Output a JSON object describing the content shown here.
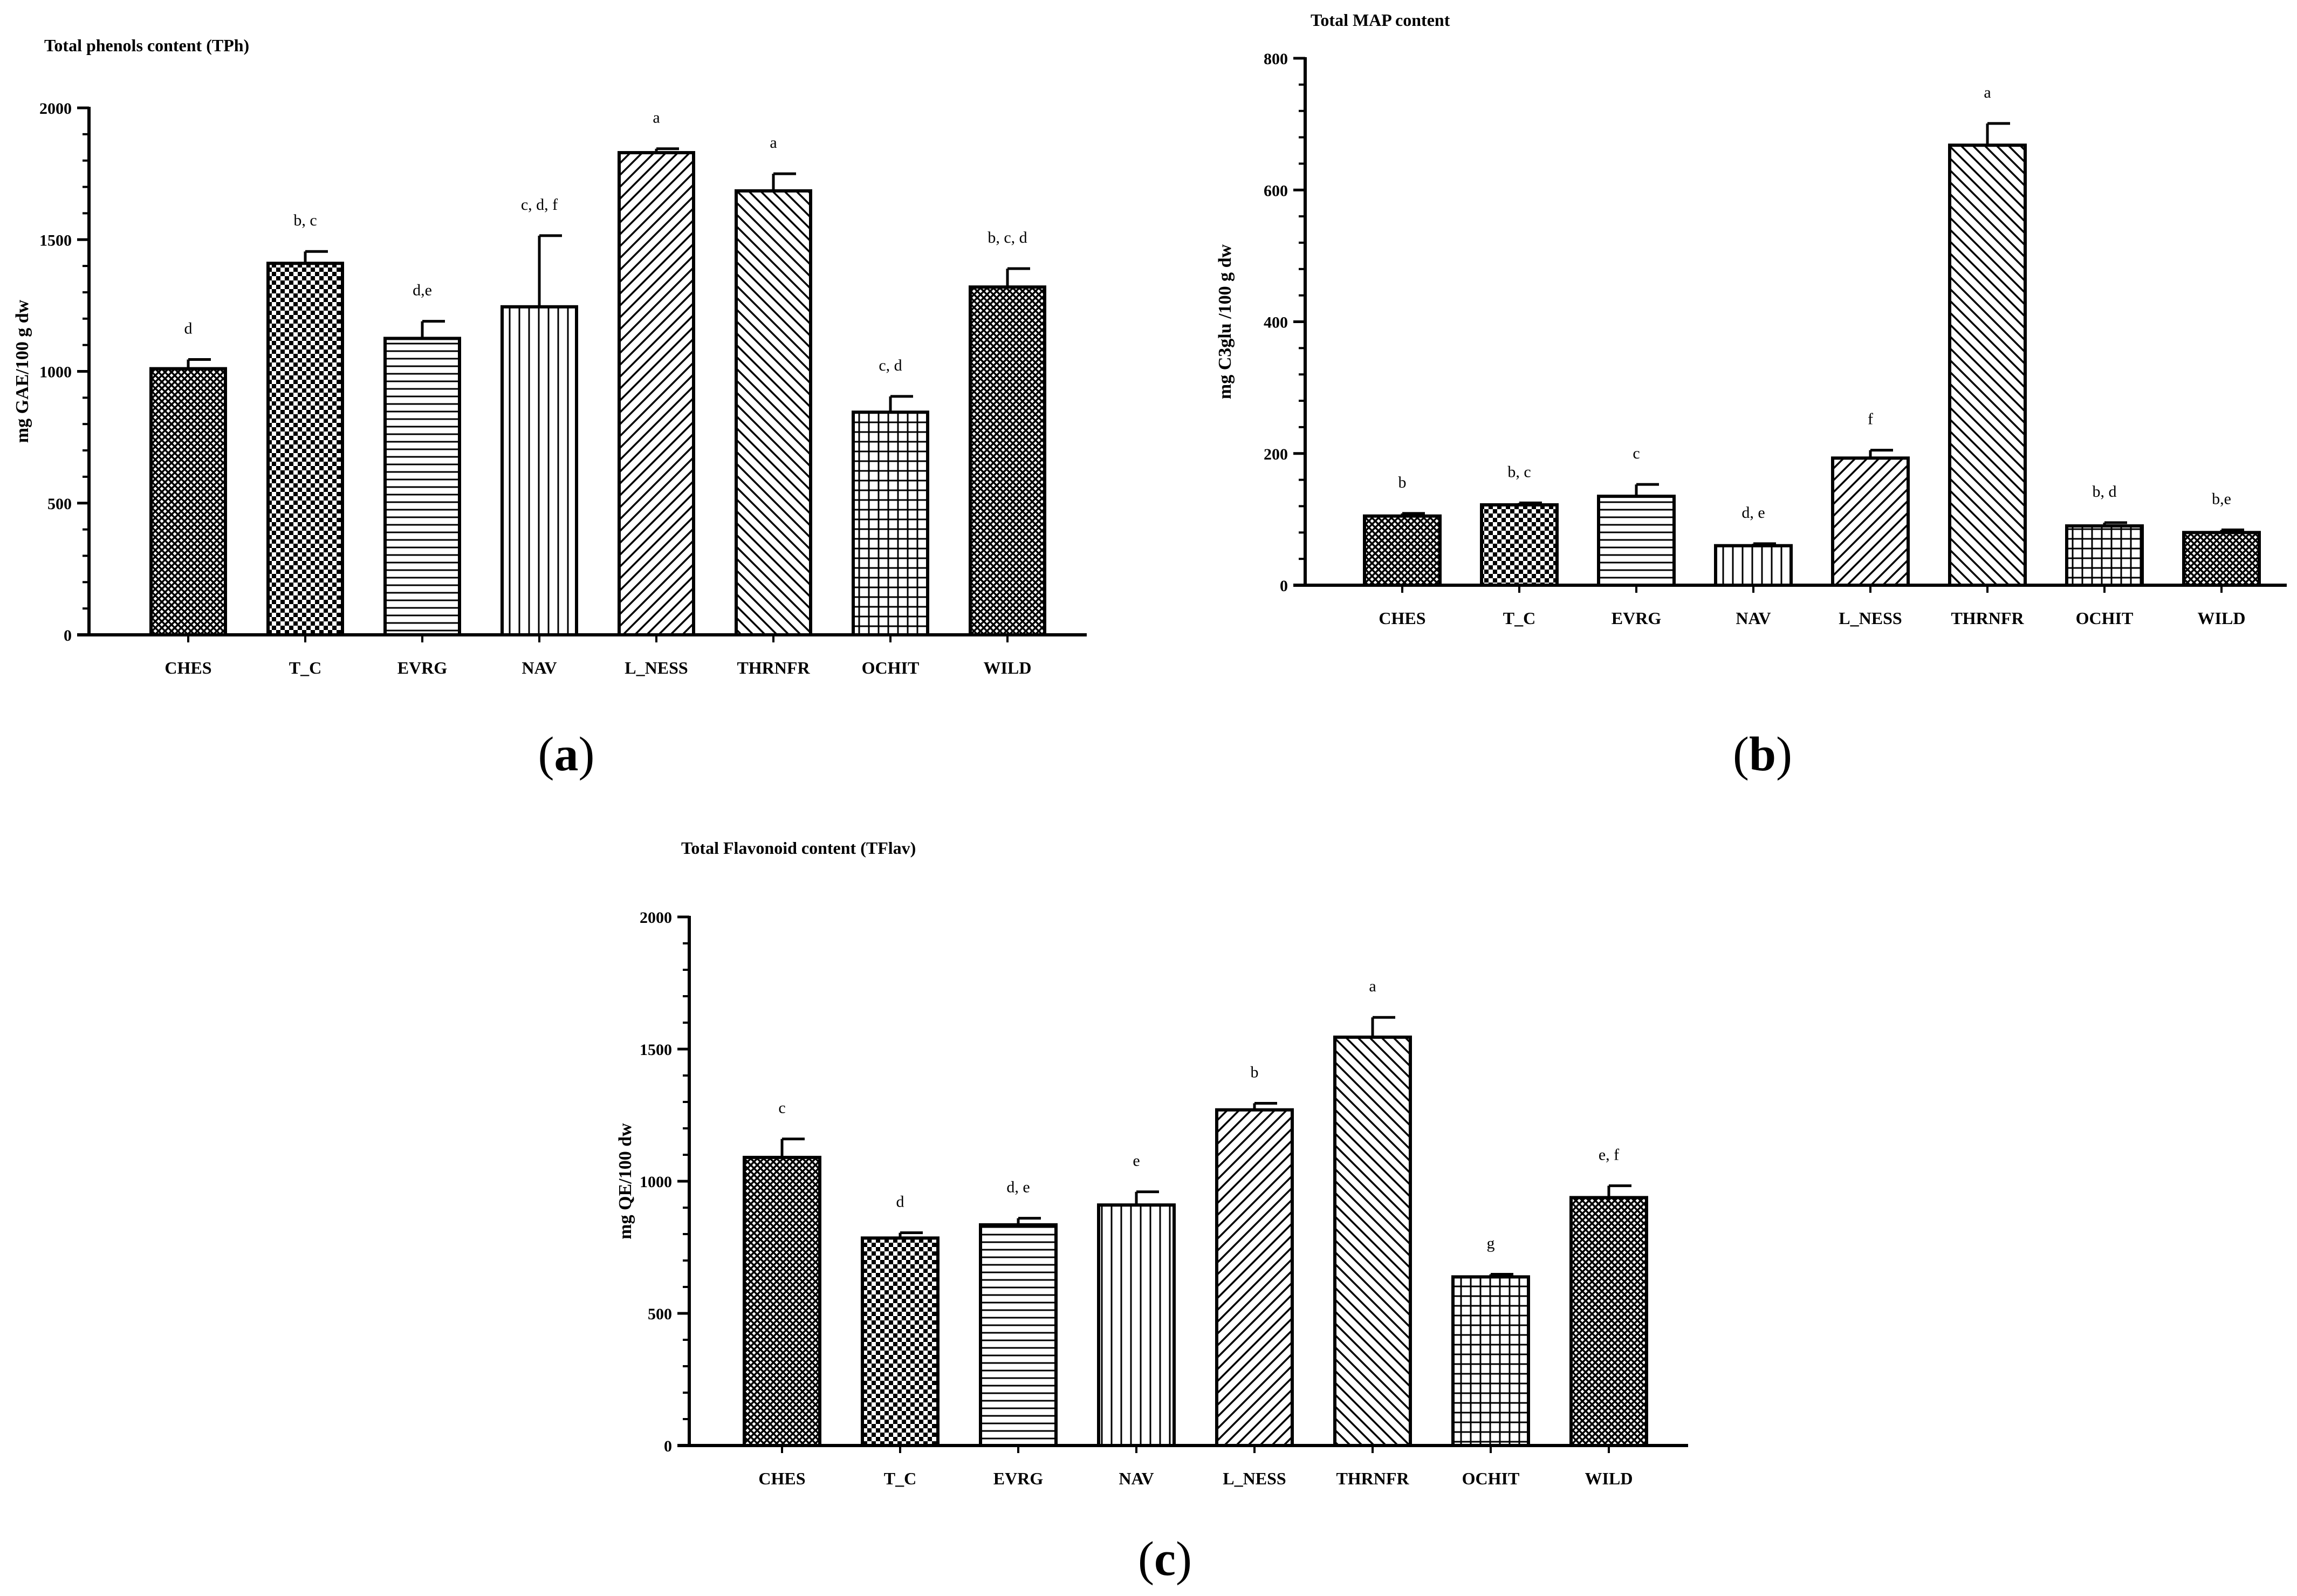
{
  "chart_data": [
    {
      "type": "bar",
      "panel_label": "(a)",
      "title": "Total phenols content (TPh)",
      "xlabel": "",
      "ylabel": "mg GAE/100 g dw",
      "ylim": [
        0,
        2000
      ],
      "yticks": [
        0,
        500,
        1000,
        1500,
        2000
      ],
      "categories": [
        "CHES",
        "T_C",
        "EVRG",
        "NAV",
        "L_NESS",
        "THRNFR",
        "OCHIT",
        "WILD"
      ],
      "values": [
        1010,
        1410,
        1125,
        1245,
        1830,
        1685,
        845,
        1320
      ],
      "errors": [
        35,
        45,
        65,
        270,
        15,
        65,
        60,
        70
      ],
      "significance": [
        "d",
        "b, c",
        "d,e",
        "c, d, f",
        "a",
        "a",
        "c, d",
        "b, c, d"
      ],
      "patterns": [
        "fine-crosshatch",
        "checker",
        "horizontal",
        "vertical",
        "diagonal-up",
        "diagonal-down",
        "grid",
        "fine-crosshatch"
      ]
    },
    {
      "type": "bar",
      "panel_label": "(b)",
      "title": "Total MAP content",
      "xlabel": "",
      "ylabel": "mg C3glu /100 g dw",
      "ylim": [
        0,
        800
      ],
      "yticks": [
        0,
        200,
        400,
        600,
        800
      ],
      "categories": [
        "CHES",
        "T_C",
        "EVRG",
        "NAV",
        "L_NESS",
        "THRNFR",
        "OCHIT",
        "WILD"
      ],
      "values": [
        105,
        122,
        135,
        60,
        193,
        668,
        90,
        80
      ],
      "errors": [
        4,
        3,
        18,
        3,
        12,
        33,
        5,
        4
      ],
      "significance": [
        "b",
        "b, c",
        "c",
        "d, e",
        "f",
        "a",
        "b, d",
        "b,e"
      ],
      "patterns": [
        "fine-crosshatch",
        "checker",
        "horizontal",
        "vertical",
        "diagonal-up",
        "diagonal-down",
        "grid",
        "fine-crosshatch"
      ]
    },
    {
      "type": "bar",
      "panel_label": "(c)",
      "title": "Total Flavonoid content (TFlav)",
      "xlabel": "",
      "ylabel": "mg QE/100 dw",
      "ylim": [
        0,
        2000
      ],
      "yticks": [
        0,
        500,
        1000,
        1500,
        2000
      ],
      "categories": [
        "CHES",
        "T_C",
        "EVRG",
        "NAV",
        "L_NESS",
        "THRNFR",
        "OCHIT",
        "WILD"
      ],
      "values": [
        1090,
        785,
        835,
        910,
        1270,
        1545,
        638,
        938
      ],
      "errors": [
        70,
        20,
        25,
        50,
        25,
        75,
        10,
        45
      ],
      "significance": [
        "c",
        "d",
        "d, e",
        "e",
        "b",
        "a",
        "g",
        "e, f"
      ],
      "patterns": [
        "fine-crosshatch",
        "checker",
        "horizontal",
        "vertical",
        "diagonal-up",
        "diagonal-down",
        "grid",
        "fine-crosshatch"
      ]
    }
  ]
}
